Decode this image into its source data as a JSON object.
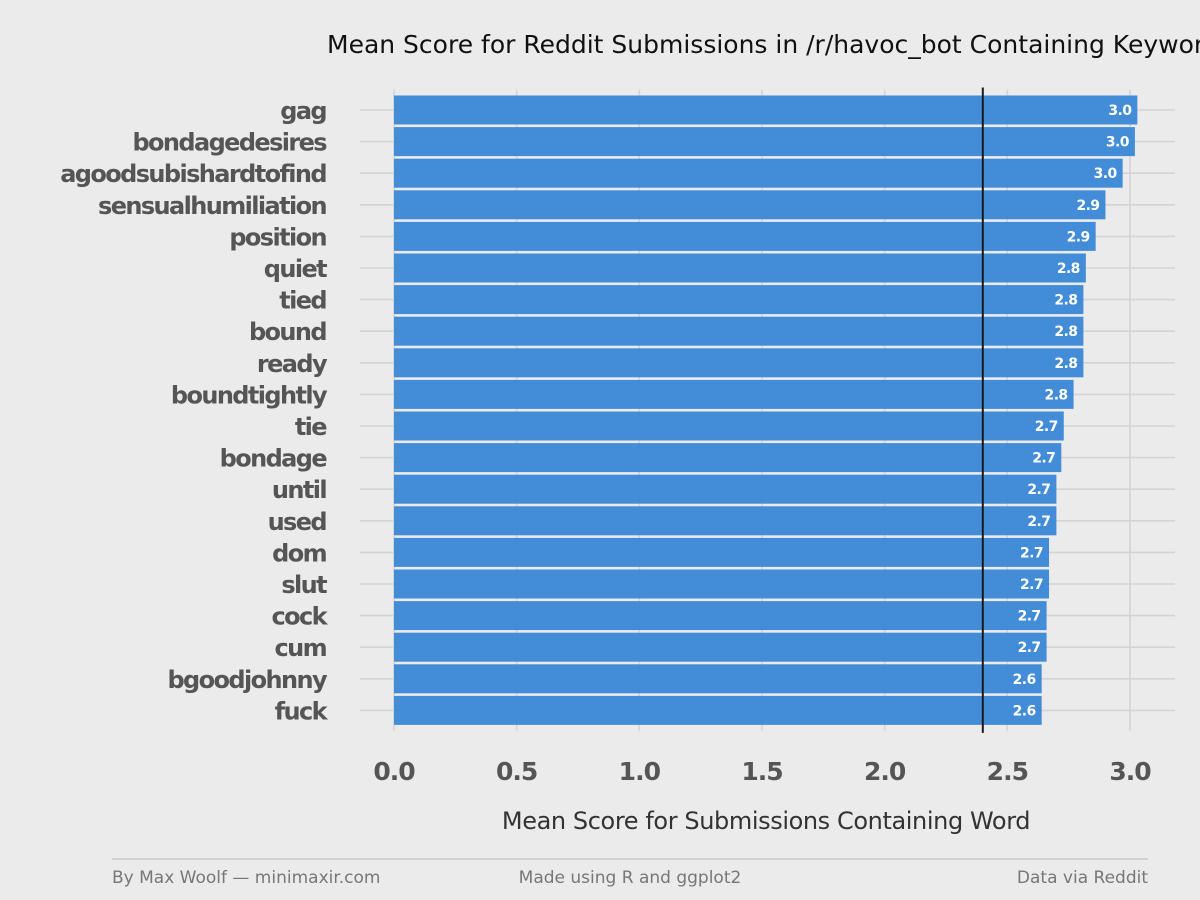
{
  "chart_data": {
    "type": "bar",
    "orientation": "horizontal",
    "title": "Mean Score for Reddit Submissions in /r/havoc_bot Containing Keyword",
    "xlabel": "Mean Score for Submissions Containing Word",
    "ylabel": "",
    "xlim": [
      0,
      3.0
    ],
    "x_ticks": [
      0.0,
      0.5,
      1.0,
      1.5,
      2.0,
      2.5,
      3.0
    ],
    "x_tick_labels": [
      "0.0",
      "0.5",
      "1.0",
      "1.5",
      "2.0",
      "2.5",
      "3.0"
    ],
    "reference_line": 2.4,
    "grid": true,
    "bar_color": "#3a87d6",
    "reference_line_color": "#1a1a1a",
    "categories": [
      "gag",
      "bondagedesires",
      "agoodsubishardtofind",
      "sensualhumiliation",
      "position",
      "quiet",
      "tied",
      "bound",
      "ready",
      "boundtightly",
      "tie",
      "bondage",
      "until",
      "used",
      "dom",
      "slut",
      "cock",
      "cum",
      "bgoodjohnny",
      "fuck"
    ],
    "values": [
      3.03,
      3.02,
      2.97,
      2.9,
      2.86,
      2.82,
      2.81,
      2.81,
      2.81,
      2.77,
      2.73,
      2.72,
      2.7,
      2.7,
      2.67,
      2.67,
      2.66,
      2.66,
      2.64,
      2.64
    ],
    "value_labels": [
      "3.0",
      "3.0",
      "3.0",
      "2.9",
      "2.9",
      "2.8",
      "2.8",
      "2.8",
      "2.8",
      "2.8",
      "2.7",
      "2.7",
      "2.7",
      "2.7",
      "2.7",
      "2.7",
      "2.7",
      "2.7",
      "2.6",
      "2.6"
    ]
  },
  "footer": {
    "left": "By Max Woolf — minimaxir.com",
    "center": "Made using R and ggplot2",
    "right": "Data via Reddit"
  }
}
